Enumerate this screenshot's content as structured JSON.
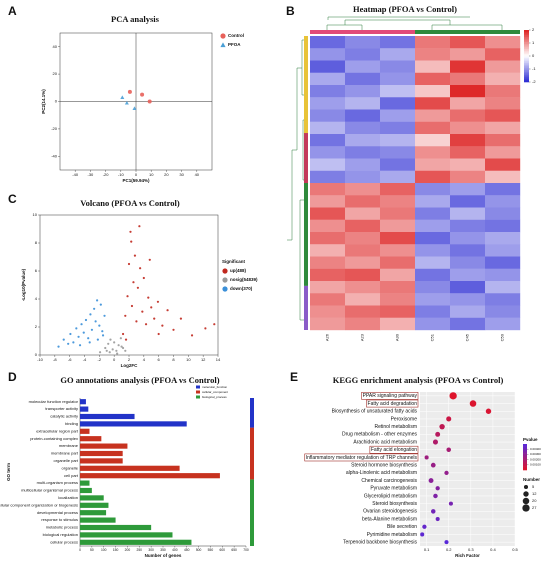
{
  "chart_data": [
    {
      "type": "scatter",
      "panel_label": "A",
      "title": "PCA analysis",
      "x_label": "PC1(59.94%)",
      "y_label": "PC2(14.1%)",
      "origin_lines": true,
      "xlim": [
        -50,
        50
      ],
      "xticks": [
        -40,
        -30,
        -20,
        -10,
        0,
        10,
        20,
        30,
        40
      ],
      "ylim": [
        -50,
        50
      ],
      "yticks": [
        -40,
        -20,
        0,
        20,
        40
      ],
      "series": [
        {
          "name": "Control",
          "color": "#e8615a",
          "marker": "circle",
          "x": [
            -4,
            4,
            9
          ],
          "y": [
            7,
            5,
            0
          ]
        },
        {
          "name": "PFOA",
          "color": "#4a9fd6",
          "marker": "triangle",
          "x": [
            -9,
            -6,
            -1
          ],
          "y": [
            3,
            -1,
            -5
          ]
        }
      ]
    },
    {
      "type": "heatmap",
      "panel_label": "B",
      "title": "Heatmap (PFOA vs Control)",
      "columns": [
        "A26",
        "A23",
        "A30",
        "C51",
        "C45",
        "C50"
      ],
      "clim": [
        -2,
        2
      ],
      "colorbar_ticks": [
        2,
        1,
        0,
        -1,
        -2
      ],
      "values": [
        [
          -1.4,
          -1.1,
          -1.3,
          1.2,
          1.5,
          1.0
        ],
        [
          -1.0,
          -1.2,
          -0.8,
          1.1,
          0.9,
          1.4
        ],
        [
          -1.5,
          -0.9,
          -1.1,
          0.6,
          1.8,
          0.9
        ],
        [
          -0.8,
          -1.3,
          -1.0,
          1.4,
          1.2,
          0.7
        ],
        [
          -1.2,
          -1.0,
          -0.6,
          0.5,
          1.9,
          1.2
        ],
        [
          -0.9,
          -0.7,
          -1.4,
          1.6,
          0.8,
          1.1
        ],
        [
          -1.1,
          -1.4,
          -0.9,
          0.9,
          1.3,
          1.5
        ],
        [
          -0.7,
          -1.1,
          -1.2,
          1.3,
          1.0,
          0.8
        ],
        [
          -1.3,
          -0.8,
          -0.7,
          0.4,
          1.7,
          1.3
        ],
        [
          -1.0,
          -1.2,
          -1.1,
          1.0,
          1.4,
          0.9
        ],
        [
          -0.6,
          -0.9,
          -1.3,
          0.8,
          0.7,
          1.6
        ],
        [
          -1.2,
          -1.0,
          -0.8,
          1.5,
          1.1,
          0.6
        ],
        [
          1.2,
          1.0,
          1.4,
          -1.1,
          -0.9,
          -1.3
        ],
        [
          0.9,
          1.3,
          1.1,
          -0.8,
          -1.4,
          -1.0
        ],
        [
          1.5,
          0.8,
          1.2,
          -1.2,
          -0.7,
          -1.1
        ],
        [
          1.0,
          1.4,
          0.9,
          -0.9,
          -1.2,
          -1.3
        ],
        [
          1.3,
          1.1,
          1.6,
          -1.4,
          -1.0,
          -0.8
        ],
        [
          0.7,
          1.2,
          1.0,
          -1.0,
          -1.3,
          -0.9
        ],
        [
          1.1,
          0.9,
          1.3,
          -0.7,
          -1.1,
          -1.4
        ],
        [
          1.4,
          1.5,
          0.8,
          -1.3,
          -0.9,
          -1.0
        ],
        [
          0.8,
          1.0,
          1.2,
          -1.1,
          -1.5,
          -0.7
        ],
        [
          1.2,
          0.7,
          1.1,
          -0.9,
          -1.0,
          -1.2
        ],
        [
          1.0,
          1.3,
          1.4,
          -1.2,
          -0.8,
          -1.1
        ],
        [
          0.9,
          1.1,
          0.7,
          -1.0,
          -1.3,
          -0.9
        ]
      ]
    },
    {
      "type": "scatter",
      "panel_label": "C",
      "title": "Volcano (PFOA vs Control)",
      "x_label": "Log2FC",
      "y_label": "-Log10(Pvalue)",
      "legend_title": "Significant",
      "xlim": [
        -10,
        14
      ],
      "xticks": [
        -10,
        -8,
        -6,
        -4,
        -2,
        0,
        2,
        4,
        6,
        8,
        10,
        12,
        14
      ],
      "ylim": [
        0,
        10
      ],
      "yticks": [
        0,
        2,
        4,
        6,
        8,
        10
      ],
      "series": [
        {
          "name": "up(488)",
          "color": "#c0281e",
          "marker": "circle",
          "x": [
            1.2,
            1.5,
            1.8,
            2,
            2.2,
            2.4,
            2.6,
            2.8,
            3,
            3.2,
            3.5,
            3.8,
            4,
            4.3,
            4.6,
            5,
            5.4,
            5.9,
            6.5,
            7.2,
            8,
            9,
            10.5,
            12.3,
            13.5,
            3.4,
            2.3,
            4.8,
            6,
            1.6
          ],
          "y": [
            1.5,
            2.8,
            4.2,
            6.5,
            8.8,
            3.5,
            5.2,
            7.1,
            2.4,
            4.8,
            6.2,
            3.1,
            5.5,
            2.2,
            4.1,
            3.4,
            2.6,
            3.8,
            2.1,
            3.2,
            1.8,
            2.6,
            1.4,
            1.9,
            2.2,
            9.2,
            8.1,
            6.8,
            1.5,
            1.1
          ]
        },
        {
          "name": "nosig(54839)",
          "color": "#9a9a9a",
          "marker": "circle",
          "x": [
            -1.9,
            -1.2,
            -0.8,
            -0.5,
            -0.2,
            0,
            0.3,
            0.6,
            0.9,
            1.2,
            1.5,
            -0.6,
            0.4,
            -1,
            1
          ],
          "y": [
            0.2,
            0.5,
            0.8,
            1.1,
            0.4,
            0.9,
            0.3,
            0.7,
            1.2,
            0.5,
            0.3,
            0.2,
            0.1,
            0.3,
            0.6
          ]
        },
        {
          "name": "down(370)",
          "color": "#3a8fd8",
          "marker": "circle",
          "x": [
            -7.5,
            -6.8,
            -6.2,
            -5.9,
            -5.5,
            -5.1,
            -4.8,
            -4.4,
            -4.1,
            -3.8,
            -3.5,
            -3.2,
            -3,
            -2.7,
            -2.5,
            -2.3,
            -2,
            -1.8,
            -1.6,
            -1.3,
            -4.6,
            -3.3,
            -2.2,
            -1.5
          ],
          "y": [
            0.6,
            1.1,
            0.8,
            1.5,
            0.9,
            1.9,
            1.3,
            2.2,
            1.6,
            2.5,
            1.2,
            2.9,
            1.8,
            3.3,
            2.4,
            3.9,
            2.1,
            3.6,
            1.7,
            2.8,
            0.7,
            0.9,
            1.1,
            1.4
          ]
        }
      ]
    },
    {
      "type": "hbar",
      "panel_label": "D",
      "title": "GO annotations analysis (PFOA vs Control)",
      "x_label": "Number of genes",
      "y_label": "GO term",
      "xlim": [
        0,
        700
      ],
      "xticks": [
        0,
        50,
        100,
        150,
        200,
        250,
        300,
        350,
        400,
        450,
        500,
        550,
        600,
        650,
        700
      ],
      "categories": [
        "molecular function regulator",
        "transporter activity",
        "catalytic activity",
        "binding",
        "extracellular region part",
        "protein-containing complex",
        "membrane",
        "membrane part",
        "organelle part",
        "organelle",
        "cell part",
        "multi-organism process",
        "multicellular organismal process",
        "localization",
        "cellular component organization or biogenesis",
        "developmental process",
        "response to stimulus",
        "metabolic process",
        "biological regulation",
        "cellular process"
      ],
      "series": [
        {
          "name": "biological_process",
          "color": "#2e9a3a",
          "values": [
            null,
            null,
            null,
            null,
            null,
            null,
            null,
            null,
            null,
            null,
            null,
            40,
            50,
            100,
            120,
            110,
            150,
            300,
            390,
            470
          ]
        },
        {
          "name": "cellular_component",
          "color": "#c7321f",
          "values": [
            null,
            null,
            null,
            null,
            40,
            90,
            200,
            180,
            180,
            420,
            590,
            null,
            null,
            null,
            null,
            null,
            null,
            null,
            null,
            null
          ]
        },
        {
          "name": "molecular_function",
          "color": "#2233c8",
          "values": [
            25,
            35,
            230,
            450,
            null,
            null,
            null,
            null,
            null,
            null,
            null,
            null,
            null,
            null,
            null,
            null,
            null,
            null,
            null,
            null
          ]
        }
      ]
    },
    {
      "type": "bubble",
      "panel_label": "E",
      "title": "KEGG enrichment analysis (PFOA vs Control)",
      "x_label": "Rich Factor",
      "xlim": [
        0.07,
        0.5
      ],
      "xticks": [
        0.1,
        0.2,
        0.3,
        0.4,
        0.5
      ],
      "categories": [
        "PPAR signaling pathway",
        "Fatty acid degradation",
        "Biosynthesis of unsaturated fatty acids",
        "Peroxisome",
        "Retinol metabolism",
        "Drug metabolism - other enzymes",
        "Arachidonic acid metabolism",
        "Fatty acid elongation",
        "Inflammatory mediator regulation of TRP channels",
        "Steroid hormone biosynthesis",
        "alpha-Linolenic acid metabolism",
        "Chemical carcinogenesis",
        "Pyruvate metabolism",
        "Glycerolipid metabolism",
        "Steroid biosynthesis",
        "Ovarian steroidogenesis",
        "beta-Alanine metabolism",
        "Bile secretion",
        "Pyrimidine metabolism",
        "Terpenoid backbone biosynthesis"
      ],
      "values": [
        0.22,
        0.31,
        0.38,
        0.2,
        0.17,
        0.15,
        0.14,
        0.2,
        0.1,
        0.13,
        0.19,
        0.12,
        0.15,
        0.14,
        0.21,
        0.13,
        0.15,
        0.09,
        0.08,
        0.19
      ],
      "sizes": [
        27,
        20,
        12,
        10,
        12,
        9,
        10,
        7,
        5,
        8,
        6,
        9,
        6,
        7,
        5,
        7,
        5,
        6,
        5,
        5
      ],
      "color_values": [
        0.0001,
        0.0002,
        0.0003,
        0.0008,
        0.0012,
        0.0015,
        0.0018,
        0.0021,
        0.0024,
        0.0026,
        0.0028,
        0.0031,
        0.0033,
        0.0035,
        0.0038,
        0.004,
        0.0042,
        0.0045,
        0.0047,
        0.0049
      ],
      "color_title": "Pvalue",
      "clim": [
        0,
        0.005
      ],
      "color_ticks": [
        {
          "value": 0.004,
          "label": "0.00400"
        },
        {
          "value": 0.003,
          "label": "0.00300"
        },
        {
          "value": 0.002,
          "label": "0.00200"
        },
        {
          "value": 0.001,
          "label": "0.00100"
        }
      ],
      "size_title": "Number",
      "size_ticks": [
        5,
        12,
        20,
        27
      ]
    }
  ]
}
